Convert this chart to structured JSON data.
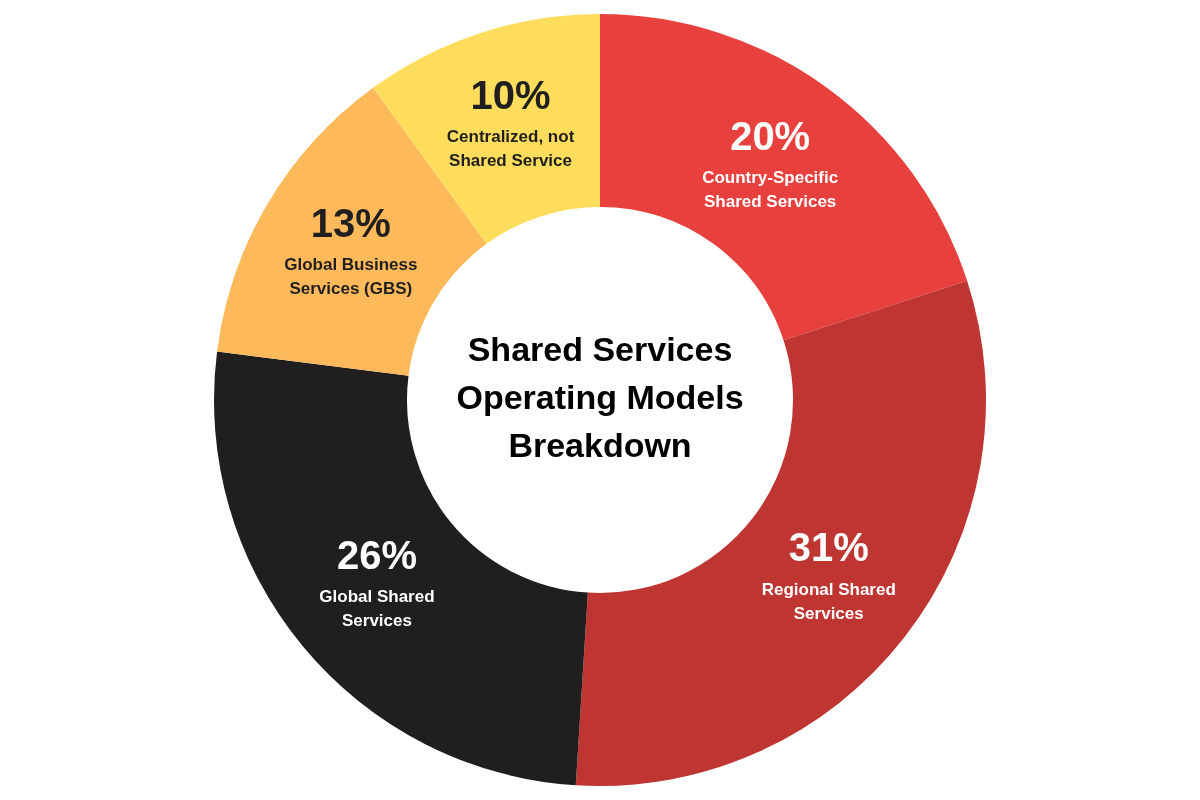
{
  "chart_data": {
    "type": "donut",
    "title": "Shared Services Operating Models Breakdown",
    "categories": [
      "Country-Specific Shared Services",
      "Regional Shared Services",
      "Global Shared Services",
      "Global Business Services (GBS)",
      "Centralized, not Shared Service"
    ],
    "values": [
      20,
      31,
      26,
      13,
      10
    ],
    "value_labels": [
      "20%",
      "31%",
      "26%",
      "13%",
      "10%"
    ],
    "colors": [
      "#e8403d",
      "#bf3532",
      "#201e1f",
      "#fdb95a",
      "#fedd5c"
    ],
    "legend": false
  }
}
